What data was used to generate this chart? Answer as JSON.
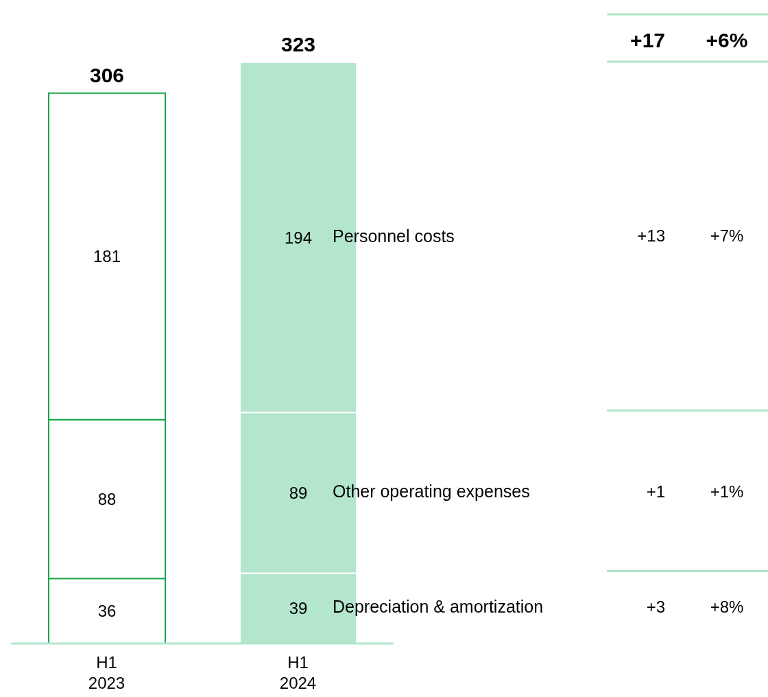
{
  "chart_data": {
    "type": "bar",
    "stacked": true,
    "categories": [
      "H1 2023",
      "H1 2024"
    ],
    "series": [
      {
        "name": "Depreciation & amortization",
        "colors": [
          "#ffffff",
          "#b3e6cc"
        ],
        "values": [
          36,
          39
        ]
      },
      {
        "name": "Other operating expenses",
        "colors": [
          "#ffffff",
          "#b3e6cc"
        ],
        "values": [
          88,
          89
        ]
      },
      {
        "name": "Personnel costs",
        "colors": [
          "#ffffff",
          "#b3e6cc"
        ],
        "values": [
          181,
          194
        ]
      }
    ],
    "data_labels": true,
    "totals": [
      "306",
      "323"
    ],
    "tick_labels": "x",
    "legend": false,
    "annotations": [
      "+17",
      "+6%",
      "+13",
      "+7%",
      "+1",
      "+1%",
      "+3",
      "+8%"
    ]
  }
}
